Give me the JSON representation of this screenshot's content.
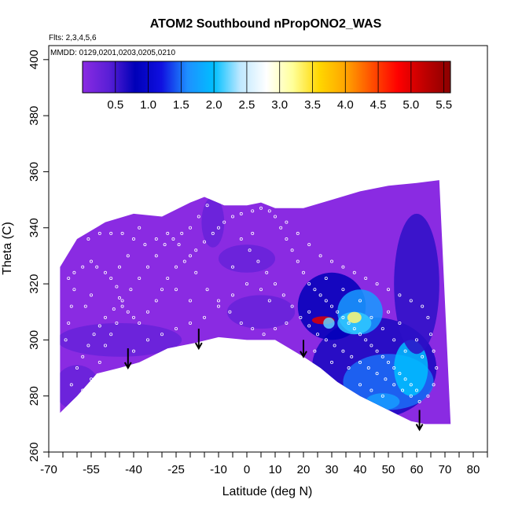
{
  "chart_data": {
    "type": "heatmap",
    "title": "ATOM2 Southbound nPropONO2_WAS",
    "subtitle_flights": "Flts: 2,3,4,5,6",
    "subtitle_dates": "MMDD: 0129,0201,0203,0205,0210",
    "xlabel": "Latitude (deg N)",
    "ylabel": "Theta (C)",
    "xlim": [
      -70,
      85
    ],
    "ylim": [
      260,
      405
    ],
    "x_ticks": [
      -70,
      -55,
      -40,
      -25,
      -10,
      0,
      10,
      20,
      30,
      40,
      50,
      60,
      70,
      80
    ],
    "y_ticks": [
      260,
      280,
      300,
      320,
      340,
      360,
      380,
      400
    ],
    "colorbar": {
      "range": [
        0,
        5.6
      ],
      "tick_values": [
        0.5,
        1.0,
        1.5,
        2.0,
        2.5,
        3.0,
        3.5,
        4.0,
        4.5,
        5.0,
        5.5
      ],
      "tick_labels": [
        "0.5",
        "1.0",
        "1.5",
        "2.0",
        "2.5",
        "3.0",
        "3.5",
        "4.0",
        "4.5",
        "5.0",
        "5.5"
      ],
      "colors": [
        "#8a2be2",
        "#5a1fd6",
        "#0000b8",
        "#1010e0",
        "#1e90ff",
        "#00bfff",
        "#bfe8ff",
        "#ffffff",
        "#ffff99",
        "#ffd700",
        "#ffa500",
        "#ff5000",
        "#ff0000",
        "#c00000",
        "#8b0000"
      ]
    },
    "field": {
      "background_color": "#8a2be2",
      "upper_boundary": [
        [
          -66,
          326
        ],
        [
          -60,
          336
        ],
        [
          -50,
          342
        ],
        [
          -40,
          345
        ],
        [
          -30,
          344
        ],
        [
          -20,
          349
        ],
        [
          -15,
          351
        ],
        [
          -8,
          348
        ],
        [
          0,
          348
        ],
        [
          5,
          349
        ],
        [
          10,
          347
        ],
        [
          20,
          347
        ],
        [
          30,
          350
        ],
        [
          40,
          353
        ],
        [
          50,
          355
        ],
        [
          60,
          356
        ],
        [
          68,
          357
        ]
      ],
      "lower_boundary": [
        [
          -66,
          274
        ],
        [
          -60,
          280
        ],
        [
          -53,
          288
        ],
        [
          -45,
          290
        ],
        [
          -38,
          292
        ],
        [
          -28,
          297
        ],
        [
          -18,
          299
        ],
        [
          -10,
          301
        ],
        [
          0,
          300
        ],
        [
          10,
          300
        ],
        [
          20,
          294
        ],
        [
          26,
          290
        ],
        [
          32,
          285
        ],
        [
          40,
          280
        ],
        [
          50,
          275
        ],
        [
          58,
          271
        ],
        [
          63,
          270
        ],
        [
          72,
          270
        ]
      ],
      "regions": [
        {
          "center": [
            45,
            290
          ],
          "radius": [
            22,
            18
          ],
          "value": 0.7
        },
        {
          "center": [
            50,
            285
          ],
          "radius": [
            16,
            10
          ],
          "value": 1.5
        },
        {
          "center": [
            -45,
            300
          ],
          "radius": [
            22,
            6
          ],
          "value": 0.3
        },
        {
          "center": [
            -60,
            283
          ],
          "radius": [
            8,
            8
          ],
          "value": 0.3
        },
        {
          "center": [
            30,
            312
          ],
          "radius": [
            12,
            12
          ],
          "value": 0.8
        },
        {
          "center": [
            40,
            310
          ],
          "radius": [
            8,
            8
          ],
          "value": 1.7
        },
        {
          "center": [
            38,
            306
          ],
          "radius": [
            6,
            4
          ],
          "value": 2.1
        },
        {
          "center": [
            38,
            308
          ],
          "radius": [
            2.5,
            2
          ],
          "value": 3.3
        },
        {
          "center": [
            27,
            307
          ],
          "radius": [
            4,
            1.4
          ],
          "value": 5.0
        },
        {
          "center": [
            29,
            306
          ],
          "radius": [
            2,
            2
          ],
          "value": 2.2
        },
        {
          "center": [
            58,
            290
          ],
          "radius": [
            6,
            10
          ],
          "value": 2.0
        },
        {
          "center": [
            48,
            278
          ],
          "radius": [
            6,
            3
          ],
          "value": 1.7
        },
        {
          "center": [
            0,
            329
          ],
          "radius": [
            10,
            5
          ],
          "value": 0.3
        },
        {
          "center": [
            5,
            310
          ],
          "radius": [
            12,
            6
          ],
          "value": 0.3
        },
        {
          "center": [
            -12,
            342
          ],
          "radius": [
            4,
            9
          ],
          "value": 0.3
        },
        {
          "center": [
            60,
            320
          ],
          "radius": [
            8,
            25
          ],
          "value": 0.6
        }
      ]
    },
    "arrows": [
      {
        "x": -42,
        "y_top": 297,
        "y_bottom": 290
      },
      {
        "x": -17,
        "y_top": 304,
        "y_bottom": 297
      },
      {
        "x": 20,
        "y_top": 300,
        "y_bottom": 294
      },
      {
        "x": 61,
        "y_top": 275,
        "y_bottom": 268
      }
    ],
    "sample_points": [
      [
        -63,
        322
      ],
      [
        -61,
        324
      ],
      [
        -58,
        326
      ],
      [
        -55,
        328
      ],
      [
        -53,
        326
      ],
      [
        -50,
        324
      ],
      [
        -48,
        322
      ],
      [
        -46,
        319
      ],
      [
        -45,
        315
      ],
      [
        -44,
        312
      ],
      [
        -42,
        310
      ],
      [
        -40,
        308
      ],
      [
        -38,
        306
      ],
      [
        -35,
        310
      ],
      [
        -32,
        314
      ],
      [
        -30,
        318
      ],
      [
        -28,
        322
      ],
      [
        -25,
        326
      ],
      [
        -22,
        328
      ],
      [
        -20,
        330
      ],
      [
        -18,
        332
      ],
      [
        -15,
        335
      ],
      [
        -12,
        338
      ],
      [
        -10,
        340
      ],
      [
        -8,
        342
      ],
      [
        -5,
        344
      ],
      [
        -2,
        345
      ],
      [
        2,
        346
      ],
      [
        5,
        347
      ],
      [
        8,
        346
      ],
      [
        10,
        344
      ],
      [
        12,
        340
      ],
      [
        14,
        336
      ],
      [
        16,
        332
      ],
      [
        18,
        328
      ],
      [
        20,
        324
      ],
      [
        22,
        320
      ],
      [
        24,
        318
      ],
      [
        26,
        316
      ],
      [
        28,
        314
      ],
      [
        30,
        312
      ],
      [
        32,
        310
      ],
      [
        34,
        308
      ],
      [
        36,
        306
      ],
      [
        38,
        304
      ],
      [
        40,
        302
      ],
      [
        42,
        300
      ],
      [
        44,
        298
      ],
      [
        46,
        296
      ],
      [
        48,
        294
      ],
      [
        50,
        292
      ],
      [
        52,
        290
      ],
      [
        54,
        288
      ],
      [
        56,
        286
      ],
      [
        58,
        284
      ],
      [
        60,
        282
      ],
      [
        -60,
        290
      ],
      [
        -58,
        294
      ],
      [
        -56,
        298
      ],
      [
        -54,
        302
      ],
      [
        -52,
        305
      ],
      [
        -50,
        308
      ],
      [
        -47,
        311
      ],
      [
        -44,
        314
      ],
      [
        -41,
        318
      ],
      [
        -38,
        322
      ],
      [
        -35,
        326
      ],
      [
        -32,
        330
      ],
      [
        -29,
        334
      ],
      [
        -26,
        336
      ],
      [
        -23,
        338
      ],
      [
        -20,
        340
      ],
      [
        -17,
        344
      ],
      [
        -14,
        348
      ],
      [
        -11,
        350
      ],
      [
        -8,
        351
      ],
      [
        -5,
        350
      ],
      [
        -2,
        336
      ],
      [
        1,
        332
      ],
      [
        4,
        328
      ],
      [
        7,
        324
      ],
      [
        10,
        320
      ],
      [
        13,
        316
      ],
      [
        16,
        312
      ],
      [
        19,
        308
      ],
      [
        22,
        305
      ],
      [
        25,
        302
      ],
      [
        28,
        300
      ],
      [
        31,
        298
      ],
      [
        34,
        296
      ],
      [
        37,
        294
      ],
      [
        40,
        292
      ],
      [
        43,
        290
      ],
      [
        46,
        288
      ],
      [
        49,
        286
      ],
      [
        52,
        284
      ],
      [
        55,
        282
      ],
      [
        58,
        280
      ],
      [
        61,
        278
      ],
      [
        64,
        280
      ],
      [
        66,
        284
      ],
      [
        67,
        290
      ],
      [
        66,
        296
      ],
      [
        65,
        302
      ],
      [
        64,
        308
      ],
      [
        62,
        312
      ],
      [
        58,
        314
      ],
      [
        54,
        316
      ],
      [
        50,
        318
      ],
      [
        46,
        320
      ],
      [
        42,
        322
      ],
      [
        38,
        324
      ],
      [
        34,
        326
      ],
      [
        30,
        328
      ],
      [
        26,
        330
      ],
      [
        22,
        334
      ],
      [
        18,
        338
      ],
      [
        14,
        342
      ],
      [
        -64,
        300
      ],
      [
        -63,
        306
      ],
      [
        -62,
        312
      ],
      [
        -61,
        318
      ],
      [
        -56,
        336
      ],
      [
        -52,
        338
      ],
      [
        -48,
        338
      ],
      [
        -44,
        338
      ],
      [
        -40,
        336
      ],
      [
        -36,
        334
      ],
      [
        -32,
        336
      ],
      [
        -28,
        338
      ],
      [
        -24,
        334
      ],
      [
        -18,
        324
      ],
      [
        -14,
        318
      ],
      [
        -10,
        314
      ],
      [
        -6,
        310
      ],
      [
        -2,
        306
      ],
      [
        2,
        304
      ],
      [
        6,
        302
      ],
      [
        10,
        304
      ],
      [
        14,
        306
      ],
      [
        -40,
        296
      ],
      [
        -35,
        300
      ],
      [
        -30,
        302
      ],
      [
        -25,
        304
      ],
      [
        -20,
        306
      ],
      [
        -15,
        308
      ],
      [
        -10,
        312
      ],
      [
        -5,
        316
      ],
      [
        0,
        320
      ],
      [
        5,
        318
      ],
      [
        8,
        314
      ],
      [
        -50,
        298
      ],
      [
        -57,
        312
      ],
      [
        -55,
        316
      ],
      [
        -45,
        326
      ],
      [
        -42,
        330
      ],
      [
        -38,
        340
      ],
      [
        -25,
        318
      ],
      [
        -20,
        314
      ],
      [
        -5,
        326
      ],
      [
        2,
        338
      ],
      [
        22,
        310
      ],
      [
        28,
        322
      ],
      [
        34,
        318
      ],
      [
        40,
        314
      ],
      [
        44,
        308
      ],
      [
        48,
        304
      ],
      [
        52,
        300
      ],
      [
        56,
        296
      ],
      [
        60,
        300
      ],
      [
        62,
        294
      ],
      [
        50,
        310
      ],
      [
        54,
        306
      ],
      [
        36,
        290
      ],
      [
        30,
        292
      ],
      [
        24,
        296
      ],
      [
        40,
        284
      ],
      [
        44,
        282
      ],
      [
        48,
        280
      ],
      [
        -62,
        284
      ],
      [
        -60,
        278
      ],
      [
        -58,
        282
      ],
      [
        -55,
        286
      ],
      [
        -52,
        292
      ],
      [
        -48,
        302
      ],
      [
        -46,
        306
      ]
    ]
  }
}
